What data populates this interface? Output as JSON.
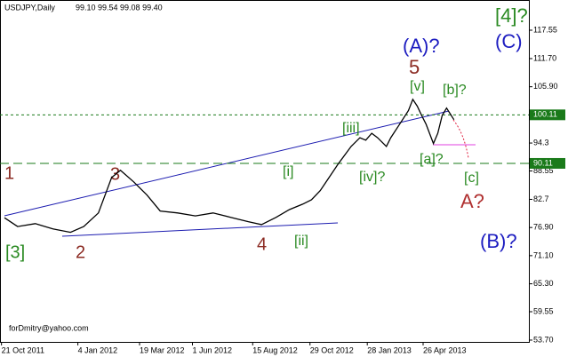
{
  "header": {
    "symbol": "USDJPY,Daily",
    "ohlc": "99.10 99.54 99.08 99.40"
  },
  "watermark": "forDmitry@yahoo.com",
  "chart_data": {
    "type": "line",
    "x": [
      3,
      12,
      24,
      36,
      48,
      57,
      67,
      76,
      82,
      91,
      100,
      109,
      121,
      133,
      145,
      157,
      169,
      178,
      188,
      197,
      206,
      212,
      218,
      224,
      230,
      239,
      245,
      249,
      253,
      257,
      263,
      266,
      272,
      278,
      281,
      284,
      287,
      290,
      295,
      298,
      301,
      304,
      309
    ],
    "series": [
      {
        "name": "USDJPY",
        "color": "#000000",
        "values": [
          78.9,
          77.1,
          77.7,
          76.6,
          75.9,
          77.1,
          79.9,
          87.2,
          88.7,
          86.3,
          83.6,
          80.3,
          79.9,
          79.3,
          79.9,
          79.0,
          78.1,
          77.5,
          79.0,
          80.6,
          81.7,
          82.6,
          84.5,
          87.2,
          89.9,
          93.6,
          95.4,
          94.9,
          96.3,
          95.4,
          93.6,
          95.4,
          98.2,
          101.0,
          103.3,
          101.9,
          100.0,
          98.2,
          94.2,
          96.3,
          100.0,
          101.5,
          99.1
        ]
      }
    ],
    "xlim": [
      0,
      360
    ],
    "xticks": [
      {
        "value": 1,
        "label": "21 Oct 2011"
      },
      {
        "value": 53,
        "label": "4 Jan 2012"
      },
      {
        "value": 95,
        "label": "19 Mar 2012"
      },
      {
        "value": 131,
        "label": "1 Jun 2012"
      },
      {
        "value": 172,
        "label": "15 Aug 2012"
      },
      {
        "value": 211,
        "label": "29 Oct 2012"
      },
      {
        "value": 250,
        "label": "28 Jan 2013"
      },
      {
        "value": 288,
        "label": "26 Apr 2013"
      }
    ],
    "ylim": [
      53.33,
      123.77
    ],
    "yticks": [
      117.55,
      {
        "value": 111.7,
        "label": "111.70"
      },
      {
        "value": 105.9,
        "label": "105.90"
      },
      94.3,
      88.55,
      82.7,
      {
        "value": 76.9,
        "label": "76.90"
      },
      {
        "value": 71.1,
        "label": "71.10"
      },
      {
        "value": 65.3,
        "label": "65.30"
      },
      59.55,
      {
        "value": 53.7,
        "label": "53.70"
      }
    ],
    "levels": [
      100.11,
      90.11
    ],
    "annotations": [
      "1",
      "[3]",
      "2",
      "3",
      "4",
      "[i]",
      "[ii]",
      "[iii]",
      "[iv]?",
      "5",
      "(A)?",
      "[v]",
      "[b]?",
      "[a]?",
      "[c]",
      "A?",
      "(B)?",
      "[4]?",
      "(C)"
    ]
  }
}
